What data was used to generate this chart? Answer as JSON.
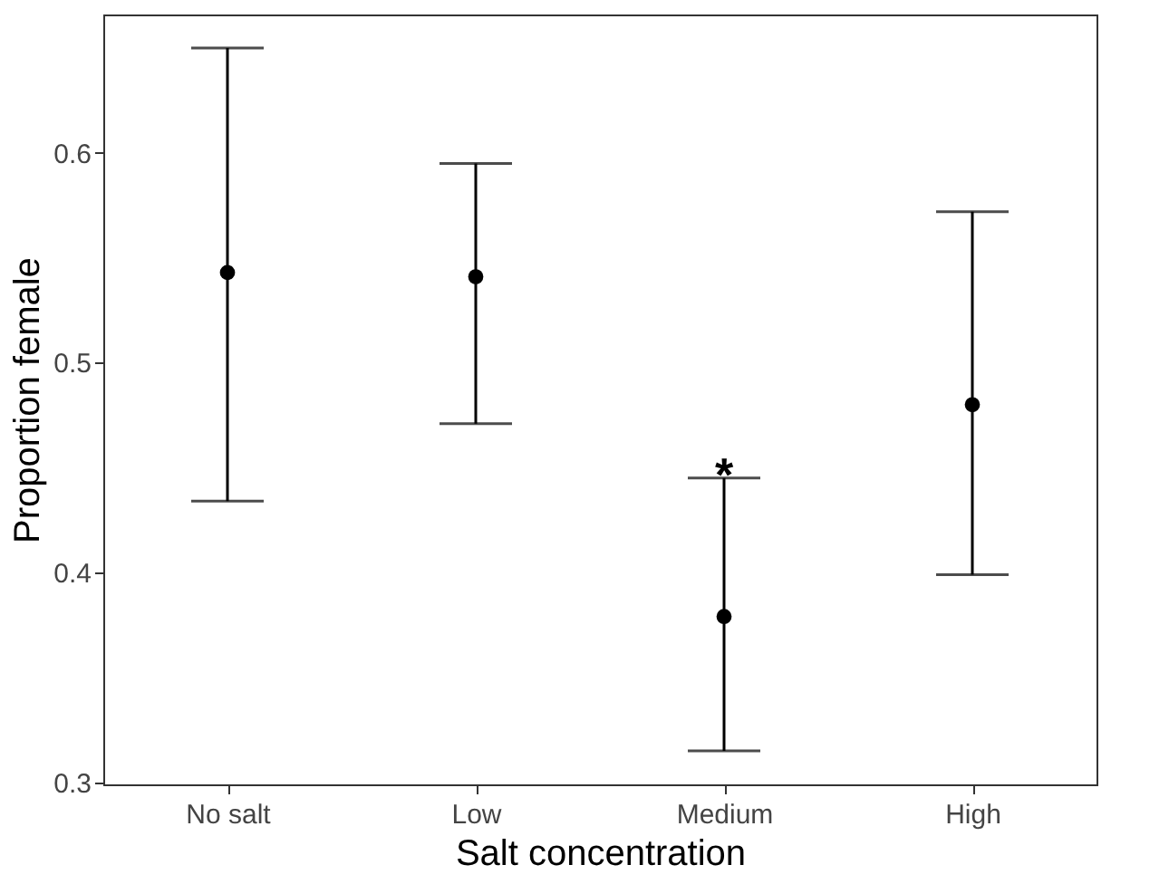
{
  "chart_data": {
    "type": "scatter",
    "xlabel": "Salt concentration",
    "ylabel": "Proportion female",
    "categories": [
      "No salt",
      "Low",
      "Medium",
      "High"
    ],
    "values": [
      0.543,
      0.541,
      0.379,
      0.48
    ],
    "errors": [
      [
        0.434,
        0.65
      ],
      [
        0.471,
        0.595
      ],
      [
        0.315,
        0.445
      ],
      [
        0.399,
        0.572
      ]
    ],
    "color": "#000000",
    "marker": "circle",
    "ylim": [
      0.299,
      0.666
    ],
    "yticks": [
      0.3,
      0.4,
      0.5,
      0.6
    ],
    "grid": false,
    "annotations": [
      {
        "text": "*",
        "x": "Medium",
        "y": 0.445
      }
    ]
  }
}
